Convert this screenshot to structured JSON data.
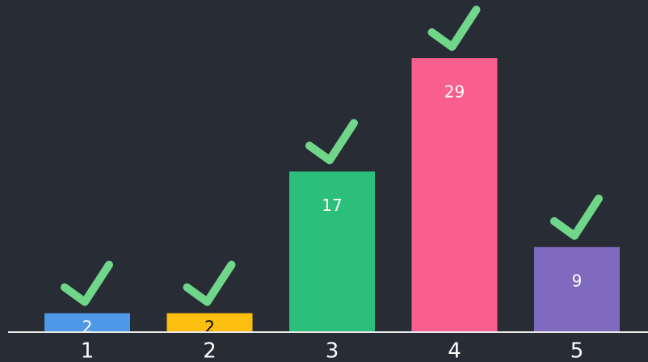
{
  "chart_data": {
    "type": "bar",
    "categories": [
      "1",
      "2",
      "3",
      "4",
      "5"
    ],
    "values": [
      2,
      2,
      17,
      29,
      9
    ],
    "colors": [
      "#4f98e8",
      "#fdbf0f",
      "#2bbf7b",
      "#f85e8e",
      "#7e6bbf"
    ],
    "value_label_colors": [
      "#ffffff",
      "#000000",
      "#ffffff",
      "#ffffff",
      "#ffffff"
    ],
    "correct": [
      true,
      true,
      true,
      true,
      true
    ],
    "check_color": "#6fd68a"
  }
}
